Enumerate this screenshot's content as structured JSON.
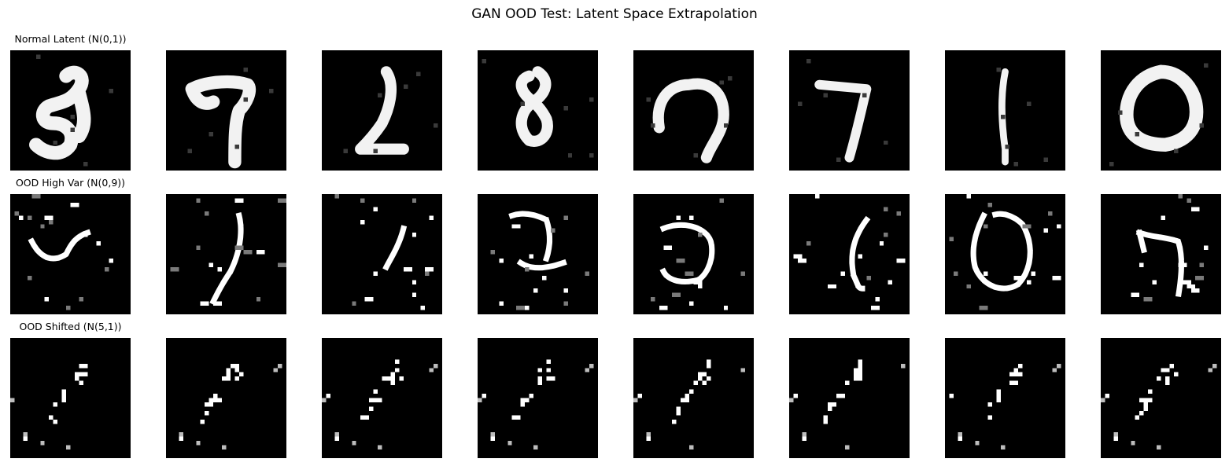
{
  "figure": {
    "title": "GAN OOD Test: Latent Space Extrapolation"
  },
  "rows": [
    {
      "label": "Normal Latent (N(0,1))",
      "digits": [
        "8",
        "7",
        "2",
        "8",
        "7",
        "7",
        "1",
        "0"
      ]
    },
    {
      "label": "OOD High Var (N(0,9))",
      "digits": [
        "",
        "",
        "",
        "",
        "",
        "",
        "",
        ""
      ]
    },
    {
      "label": "OOD Shifted (N(5,1))",
      "digits": [
        "",
        "",
        "",
        "",
        "",
        "",
        "",
        ""
      ]
    }
  ],
  "chart_data": {
    "type": "image-grid",
    "title": "GAN OOD Test: Latent Space Extrapolation",
    "grid": {
      "rows": 3,
      "cols": 8
    },
    "row_titles": [
      "Normal Latent (N(0,1))",
      "OOD High Var (N(0,9))",
      "OOD Shifted (N(5,1))"
    ],
    "colormap": "gray",
    "background": "#000000",
    "foreground": "#ffffff"
  }
}
